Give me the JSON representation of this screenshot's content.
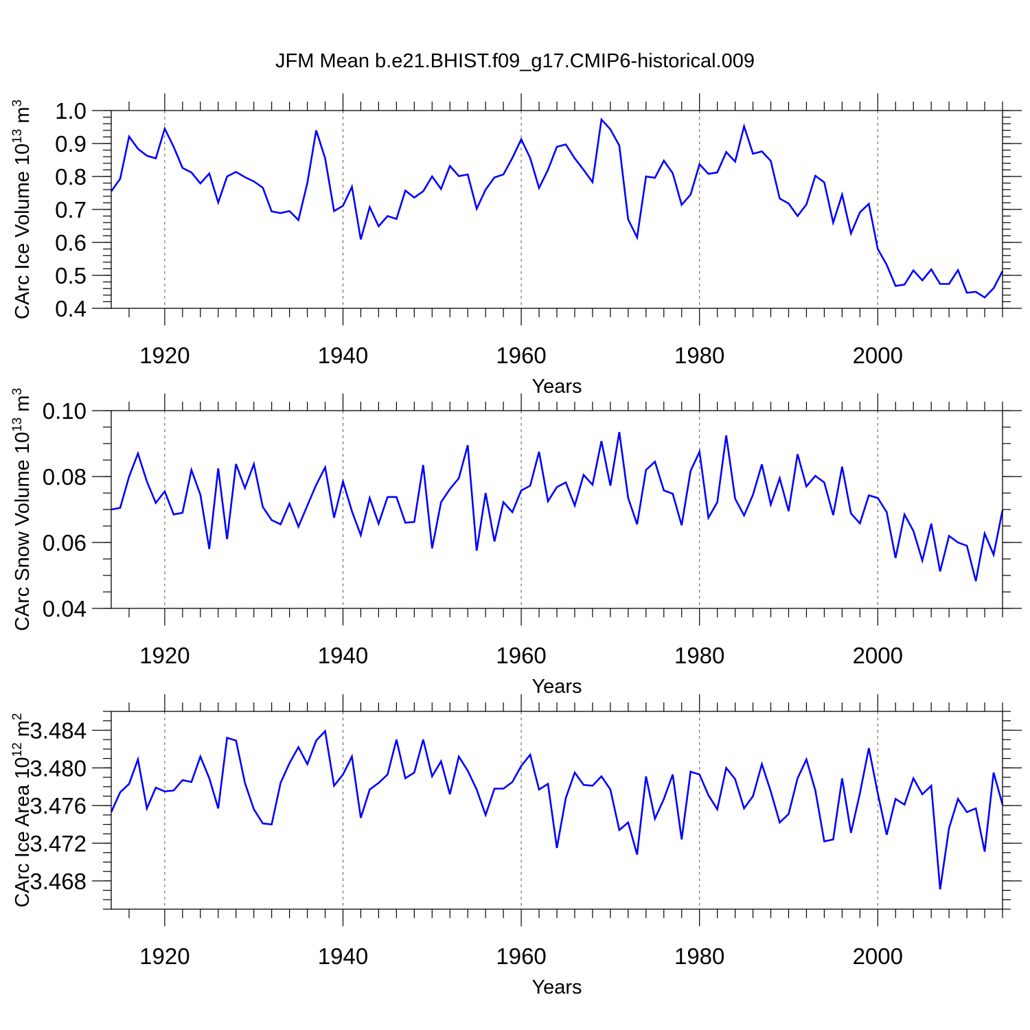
{
  "title": "JFM Mean b.e21.BHIST.f09_g17.CMIP6-historical.009",
  "chart_data": [
    {
      "type": "line",
      "ylabel": "CArc Ice Volume 10",
      "ylabel_exp": "13",
      "ylabel_unit": " m",
      "ylabel_unit_exp": "3",
      "xlabel": "Years",
      "xlim": [
        1914,
        2014
      ],
      "ylim": [
        0.4,
        1.0
      ],
      "xticks": [
        1920,
        1940,
        1960,
        1980,
        2000
      ],
      "xtick_labels": [
        "1920",
        "1940",
        "1960",
        "1980",
        "2000"
      ],
      "yticks": [
        0.4,
        0.5,
        0.6,
        0.7,
        0.8,
        0.9,
        1.0
      ],
      "ytick_labels": [
        "0.4",
        "0.5",
        "0.6",
        "0.7",
        "0.8",
        "0.9",
        "1.0"
      ],
      "ytick_minor_step": 0.02,
      "grid": "vertical dashed at major x ticks",
      "line_color": "#0000ff",
      "start_year": 1914,
      "values": [
        0.755,
        0.793,
        0.921,
        0.884,
        0.863,
        0.855,
        0.945,
        0.89,
        0.826,
        0.812,
        0.779,
        0.809,
        0.721,
        0.8,
        0.814,
        0.798,
        0.785,
        0.766,
        0.694,
        0.689,
        0.695,
        0.668,
        0.78,
        0.94,
        0.855,
        0.695,
        0.711,
        0.769,
        0.609,
        0.707,
        0.649,
        0.68,
        0.671,
        0.757,
        0.736,
        0.755,
        0.8,
        0.762,
        0.832,
        0.801,
        0.806,
        0.702,
        0.76,
        0.797,
        0.806,
        0.856,
        0.913,
        0.856,
        0.765,
        0.82,
        0.89,
        0.897,
        0.855,
        0.82,
        0.783,
        0.973,
        0.943,
        0.894,
        0.67,
        0.615,
        0.8,
        0.796,
        0.848,
        0.81,
        0.714,
        0.745,
        0.837,
        0.808,
        0.812,
        0.874,
        0.845,
        0.952,
        0.869,
        0.876,
        0.847,
        0.733,
        0.718,
        0.68,
        0.715,
        0.802,
        0.782,
        0.66,
        0.745,
        0.627,
        0.691,
        0.717,
        0.58,
        0.532,
        0.468,
        0.472,
        0.515,
        0.485,
        0.518,
        0.474,
        0.474,
        0.516,
        0.447,
        0.45,
        0.433,
        0.461,
        0.513
      ]
    },
    {
      "type": "line",
      "ylabel": "CArc Snow Volume 10",
      "ylabel_exp": "13",
      "ylabel_unit": " m",
      "ylabel_unit_exp": "3",
      "xlabel": "Years",
      "xlim": [
        1914,
        2014
      ],
      "ylim": [
        0.04,
        0.1
      ],
      "xticks": [
        1920,
        1940,
        1960,
        1980,
        2000
      ],
      "xtick_labels": [
        "1920",
        "1940",
        "1960",
        "1980",
        "2000"
      ],
      "yticks": [
        0.04,
        0.06,
        0.08,
        0.1
      ],
      "ytick_labels": [
        "0.04",
        "0.06",
        "0.08",
        "0.10"
      ],
      "ytick_minor_step": 0.005,
      "grid": "vertical dashed at major x ticks",
      "line_color": "#0000ff",
      "start_year": 1914,
      "values": [
        0.07,
        0.0705,
        0.08,
        0.087,
        0.0785,
        0.072,
        0.0755,
        0.0685,
        0.069,
        0.082,
        0.0745,
        0.058,
        0.0825,
        0.061,
        0.0838,
        0.0765,
        0.0838,
        0.0708,
        0.0668,
        0.0655,
        0.0718,
        0.0648,
        0.0712,
        0.0775,
        0.0828,
        0.0675,
        0.0785,
        0.0695,
        0.0622,
        0.0735,
        0.0657,
        0.0738,
        0.0738,
        0.066,
        0.0662,
        0.0835,
        0.0582,
        0.0722,
        0.0762,
        0.0795,
        0.0895,
        0.0575,
        0.075,
        0.0603,
        0.0722,
        0.0692,
        0.0758,
        0.0772,
        0.0875,
        0.0725,
        0.0768,
        0.0782,
        0.0712,
        0.0805,
        0.0775,
        0.0908,
        0.0772,
        0.0935,
        0.0735,
        0.0655,
        0.082,
        0.0845,
        0.0758,
        0.0748,
        0.0652,
        0.0817,
        0.0875,
        0.0675,
        0.0722,
        0.0925,
        0.0733,
        0.0682,
        0.0745,
        0.0837,
        0.0715,
        0.0795,
        0.0695,
        0.0868,
        0.077,
        0.0802,
        0.0782,
        0.0683,
        0.083,
        0.0688,
        0.0658,
        0.0743,
        0.0735,
        0.0692,
        0.0553,
        0.0685,
        0.0635,
        0.0545,
        0.0657,
        0.0512,
        0.062,
        0.06,
        0.059,
        0.0483,
        0.0627,
        0.0563,
        0.0698
      ]
    },
    {
      "type": "line",
      "ylabel": "CArc Ice Area 10",
      "ylabel_exp": "12",
      "ylabel_unit": " m",
      "ylabel_unit_exp": "2",
      "xlabel": "Years",
      "xlim": [
        1914,
        2014
      ],
      "ylim": [
        3.465,
        3.486
      ],
      "xticks": [
        1920,
        1940,
        1960,
        1980,
        2000
      ],
      "xtick_labels": [
        "1920",
        "1940",
        "1960",
        "1980",
        "2000"
      ],
      "yticks": [
        3.468,
        3.472,
        3.476,
        3.48,
        3.484
      ],
      "ytick_labels": [
        "3.468",
        "3.472",
        "3.476",
        "3.480",
        "3.484"
      ],
      "ytick_minor_step": 0.001,
      "grid": "vertical dashed at major x ticks",
      "line_color": "#0000ff",
      "start_year": 1914,
      "values": [
        3.4753,
        3.4774,
        3.4783,
        3.4809,
        3.4757,
        3.4779,
        3.4775,
        3.4776,
        3.4787,
        3.4785,
        3.4812,
        3.4789,
        3.4757,
        3.4832,
        3.4829,
        3.4784,
        3.4756,
        3.4741,
        3.474,
        3.4784,
        3.4805,
        3.4822,
        3.4804,
        3.4829,
        3.4839,
        3.4781,
        3.4793,
        3.4812,
        3.4747,
        3.4777,
        3.4784,
        3.4793,
        3.483,
        3.4789,
        3.4795,
        3.483,
        3.4791,
        3.4807,
        3.4772,
        3.4812,
        3.4797,
        3.4777,
        3.475,
        3.4778,
        3.4778,
        3.4785,
        3.4802,
        3.4814,
        3.4777,
        3.4783,
        3.4715,
        3.4768,
        3.4795,
        3.4782,
        3.4781,
        3.4791,
        3.4777,
        3.4734,
        3.4742,
        3.4708,
        3.4791,
        3.4746,
        3.4767,
        3.4793,
        3.4724,
        3.4796,
        3.4793,
        3.4771,
        3.4756,
        3.48,
        3.4788,
        3.4757,
        3.477,
        3.4804,
        3.4775,
        3.4742,
        3.4751,
        3.4789,
        3.4809,
        3.4776,
        3.4722,
        3.4724,
        3.4789,
        3.4731,
        3.4773,
        3.4821,
        3.4773,
        3.4729,
        3.4767,
        3.4761,
        3.4789,
        3.4772,
        3.4781,
        3.4671,
        3.4736,
        3.4767,
        3.4753,
        3.4757,
        3.4711,
        3.4795,
        3.4761
      ]
    }
  ]
}
